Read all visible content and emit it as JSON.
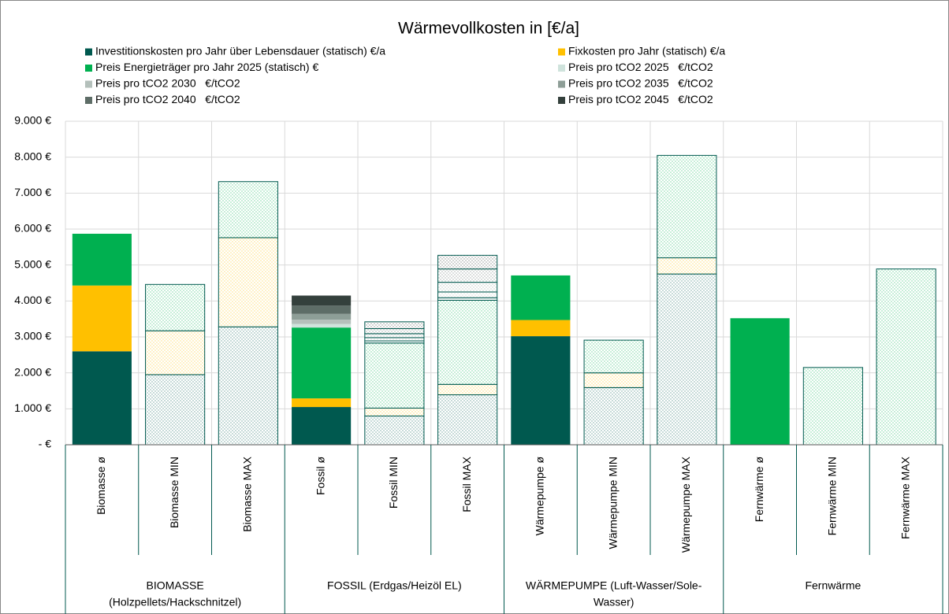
{
  "chart_data": {
    "type": "stacked_bar",
    "title": "Wärmevollkosten in [€/a]",
    "groups": [
      {
        "label": [
          "BIOMASSE",
          "(Holzpellets/Hackschnitzel)"
        ],
        "categories": [
          "Biomasse ø",
          "Biomasse MIN",
          "Biomasse MAX"
        ]
      },
      {
        "label": [
          "FOSSIL (Erdgas/Heizöl EL)"
        ],
        "categories": [
          "Fossil ø",
          "Fossil MIN",
          "Fossil MAX"
        ]
      },
      {
        "label": [
          "WÄRMEPUMPE (Luft-Wasser/Sole-",
          "Wasser)"
        ],
        "categories": [
          "Wärmepumpe ø",
          "Wärmepumpe MIN",
          "Wärmepumpe MAX"
        ]
      },
      {
        "label": [
          "Fernwärme"
        ],
        "categories": [
          "Fernwärme ø",
          "Fernwärme MIN",
          "Fernwärme MAX"
        ]
      }
    ],
    "patterned": [
      false,
      true,
      true,
      false,
      true,
      true,
      false,
      true,
      true,
      false,
      true,
      true
    ],
    "series": [
      {
        "name": "Investitionskosten pro Jahr über Lebensdauer (statisch) €/a",
        "color": "#00594f",
        "values": [
          2600,
          1950,
          3280,
          1050,
          800,
          1390,
          3020,
          1590,
          4750,
          null,
          null,
          null
        ]
      },
      {
        "name": "Fixkosten pro Jahr (statisch) €/a",
        "color": "#ffc000",
        "values": [
          1830,
          1220,
          2480,
          240,
          220,
          290,
          450,
          410,
          450,
          null,
          null,
          null
        ]
      },
      {
        "name": "Preis Energieträger pro Jahr 2025 (statisch) €",
        "color": "#00b050",
        "values": [
          1440,
          1290,
          1560,
          1970,
          1810,
          2340,
          1240,
          910,
          2850,
          3520,
          2150,
          4890
        ]
      },
      {
        "name": "Preis pro tCO2 2025   €/tCO2",
        "color": "#cfe3dc",
        "values": [
          null,
          null,
          null,
          100,
          60,
          70,
          null,
          null,
          null,
          null,
          null,
          null
        ]
      },
      {
        "name": "Preis pro tCO2 2030   €/tCO2",
        "color": "#b4c0bb",
        "values": [
          null,
          null,
          null,
          120,
          90,
          160,
          null,
          null,
          null,
          null,
          null,
          null
        ]
      },
      {
        "name": "Preis pro tCO2 2035   €/tCO2",
        "color": "#8e9e97",
        "values": [
          null,
          null,
          null,
          160,
          110,
          270,
          null,
          null,
          null,
          null,
          null,
          null
        ]
      },
      {
        "name": "Preis pro tCO2 2040   €/tCO2",
        "color": "#5e6d67",
        "values": [
          null,
          null,
          null,
          230,
          140,
          370,
          null,
          null,
          null,
          null,
          null,
          null
        ]
      },
      {
        "name": "Preis pro tCO2 2045   €/tCO2",
        "color": "#34403c",
        "values": [
          null,
          null,
          null,
          280,
          190,
          380,
          null,
          null,
          null,
          null,
          null,
          null
        ]
      }
    ],
    "ylim": [
      0,
      9000
    ],
    "yticks": [
      {
        "value": 0,
        "label": "-  €"
      },
      {
        "value": 1000,
        "label": "1.000 €"
      },
      {
        "value": 2000,
        "label": "2.000 €"
      },
      {
        "value": 3000,
        "label": "3.000 €"
      },
      {
        "value": 4000,
        "label": "4.000 €"
      },
      {
        "value": 5000,
        "label": "5.000 €"
      },
      {
        "value": 6000,
        "label": "6.000 €"
      },
      {
        "value": 7000,
        "label": "7.000 €"
      },
      {
        "value": 8000,
        "label": "8.000 €"
      },
      {
        "value": 9000,
        "label": "9.000 €"
      }
    ],
    "grid": true,
    "legend": "top"
  }
}
